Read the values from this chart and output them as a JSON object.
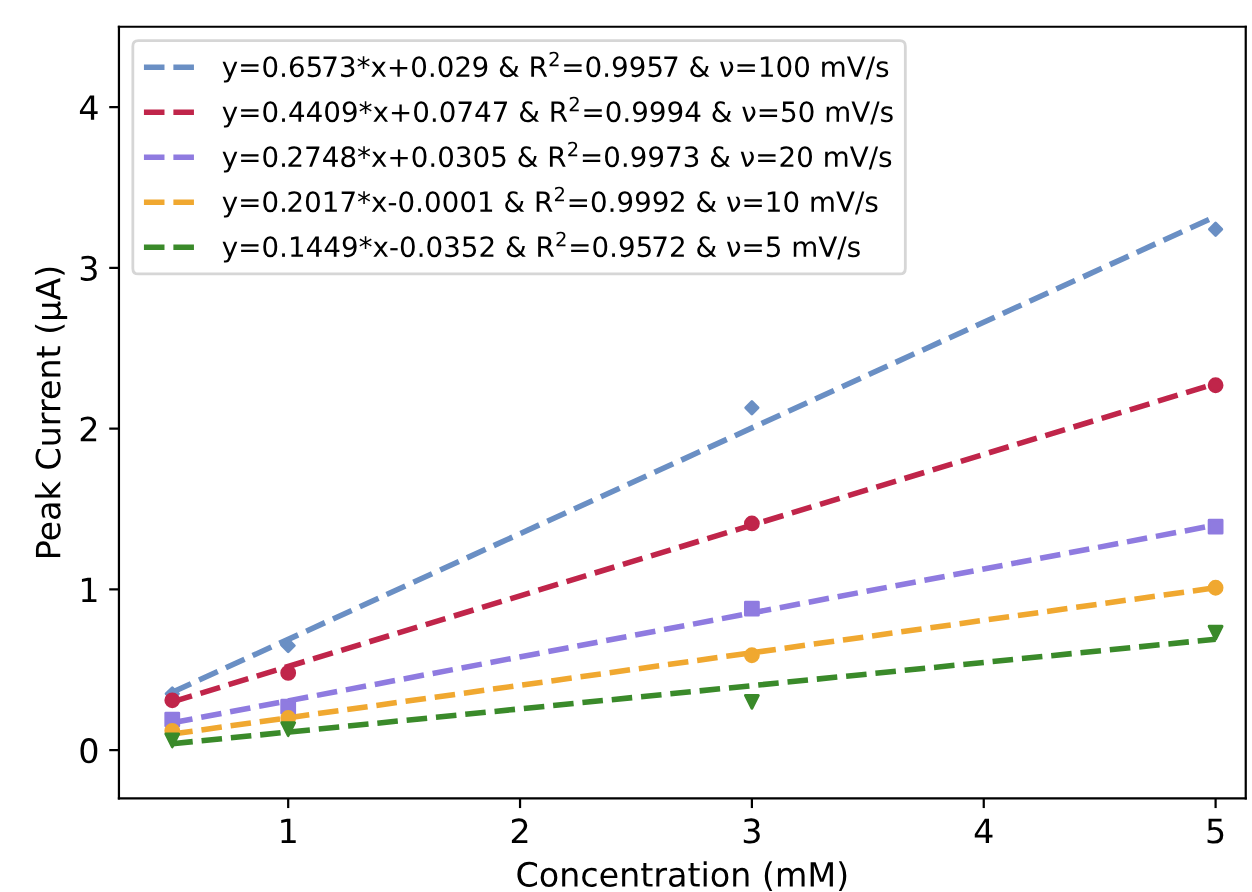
{
  "chart_data": {
    "type": "line",
    "xlabel": "Concentration (mM)",
    "ylabel": "Peak Current (μA)",
    "xlim": [
      0.27,
      5.13
    ],
    "ylim": [
      -0.3,
      4.5
    ],
    "xticks": [
      1,
      2,
      3,
      4,
      5
    ],
    "yticks": [
      0,
      1,
      2,
      3,
      4
    ],
    "grid": false,
    "legend": "top left",
    "series": [
      {
        "name": "y=0.6573*x+0.029 & R$^{2}$=0.9957 & ν=100 mV/s",
        "line_style": "dashed",
        "marker": "none",
        "color": "#6a8fc4",
        "x": [
          0.5,
          5
        ],
        "values": [
          0.36,
          3.32
        ]
      },
      {
        "name": "y=0.4409*x+0.0747 & R$^{2}$=0.9994 & ν=50 mV/s",
        "line_style": "dashed",
        "marker": "none",
        "color": "#c0254a",
        "x": [
          0.5,
          5
        ],
        "values": [
          0.3,
          2.28
        ]
      },
      {
        "name": "y=0.2748*x+0.0305 & R$^{2}$=0.9973 & ν=20 mV/s",
        "line_style": "dashed",
        "marker": "none",
        "color": "#8f7be0",
        "x": [
          0.5,
          5
        ],
        "values": [
          0.17,
          1.4
        ]
      },
      {
        "name": "y=0.2017*x-0.0001 & R$^{2}$=0.9992 & ν=10 mV/s",
        "line_style": "dashed",
        "marker": "none",
        "color": "#f0a830",
        "x": [
          0.5,
          5
        ],
        "values": [
          0.1,
          1.01
        ]
      },
      {
        "name": "y=0.1449*x-0.0352 & R$^{2}$=0.9572 & ν=5 mV/s",
        "line_style": "dashed",
        "marker": "none",
        "color": "#3a8a2a",
        "x": [
          0.5,
          5
        ],
        "values": [
          0.04,
          0.69
        ]
      },
      {
        "type": "scatter",
        "marker": "diamond",
        "color": "#6a8fc4",
        "x": [
          0.5,
          1,
          3,
          5
        ],
        "values": [
          0.35,
          0.65,
          2.13,
          3.24
        ]
      },
      {
        "type": "scatter",
        "marker": "circle",
        "color": "#c0254a",
        "x": [
          0.5,
          1,
          3,
          5
        ],
        "values": [
          0.31,
          0.48,
          1.41,
          2.27
        ]
      },
      {
        "type": "scatter",
        "marker": "square",
        "color": "#8f7be0",
        "x": [
          0.5,
          1,
          3,
          5
        ],
        "values": [
          0.19,
          0.27,
          0.88,
          1.39
        ]
      },
      {
        "type": "scatter",
        "marker": "circle",
        "color": "#f0a830",
        "x": [
          0.5,
          1,
          3,
          5
        ],
        "values": [
          0.12,
          0.2,
          0.59,
          1.01
        ]
      },
      {
        "type": "scatter",
        "marker": "triangle_down",
        "color": "#3a8a2a",
        "x": [
          0.5,
          1,
          3,
          5
        ],
        "values": [
          0.06,
          0.13,
          0.3,
          0.73
        ]
      }
    ]
  }
}
